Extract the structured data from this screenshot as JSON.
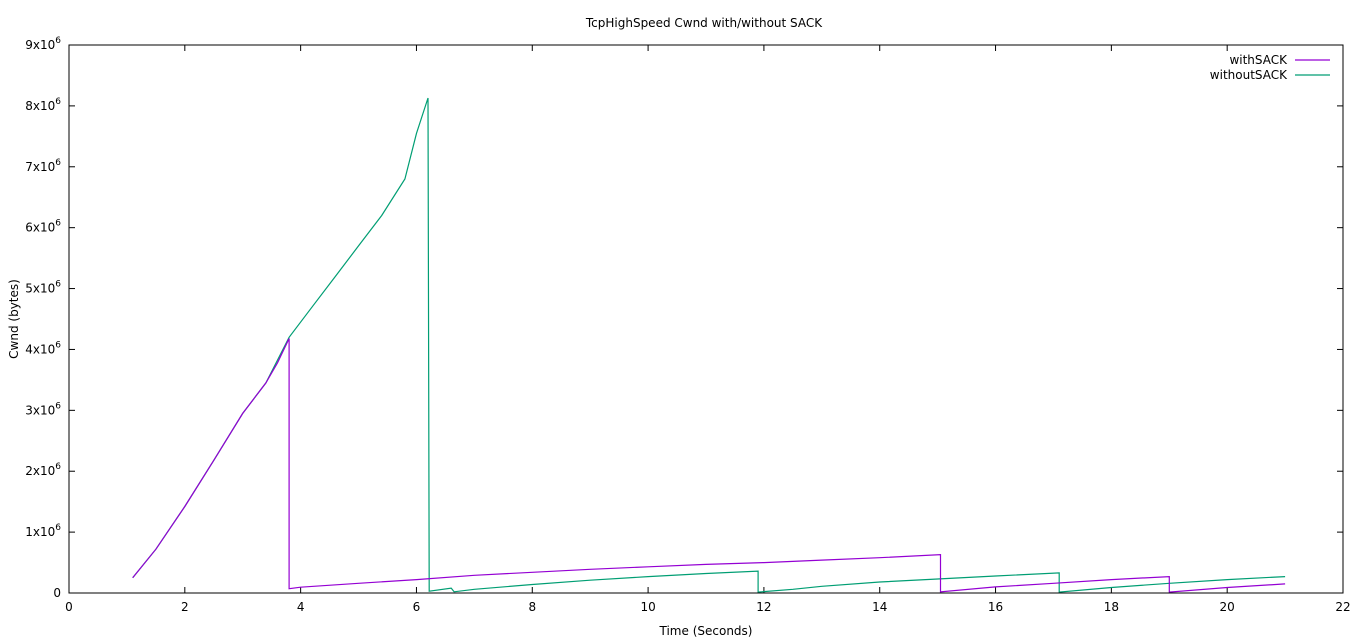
{
  "chart_data": {
    "type": "line",
    "title": "TcpHighSpeed Cwnd with/without SACK",
    "xlabel": "Time (Seconds)",
    "ylabel": "Cwnd (bytes)",
    "xlim": [
      0,
      22
    ],
    "ylim": [
      0,
      9000000
    ],
    "x_ticks": [
      {
        "value": 0,
        "label": "0"
      },
      {
        "value": 2,
        "label": "2"
      },
      {
        "value": 4,
        "label": "4"
      },
      {
        "value": 6,
        "label": "6"
      },
      {
        "value": 8,
        "label": "8"
      },
      {
        "value": 10,
        "label": "10"
      },
      {
        "value": 12,
        "label": "12"
      },
      {
        "value": 14,
        "label": "14"
      },
      {
        "value": 16,
        "label": "16"
      },
      {
        "value": 18,
        "label": "18"
      },
      {
        "value": 20,
        "label": "20"
      },
      {
        "value": 22,
        "label": "22"
      }
    ],
    "y_ticks": [
      {
        "value": 0,
        "mant": "0",
        "exp": ""
      },
      {
        "value": 1000000,
        "mant": "1x10",
        "exp": "6"
      },
      {
        "value": 2000000,
        "mant": "2x10",
        "exp": "6"
      },
      {
        "value": 3000000,
        "mant": "3x10",
        "exp": "6"
      },
      {
        "value": 4000000,
        "mant": "4x10",
        "exp": "6"
      },
      {
        "value": 5000000,
        "mant": "5x10",
        "exp": "6"
      },
      {
        "value": 6000000,
        "mant": "6x10",
        "exp": "6"
      },
      {
        "value": 7000000,
        "mant": "7x10",
        "exp": "6"
      },
      {
        "value": 8000000,
        "mant": "8x10",
        "exp": "6"
      },
      {
        "value": 9000000,
        "mant": "9x10",
        "exp": "6"
      }
    ],
    "grid": false,
    "legend_position": "top-right",
    "series": [
      {
        "name": "withSACK",
        "color": "#9400d3",
        "points": [
          [
            1.1,
            250000
          ],
          [
            1.5,
            720000
          ],
          [
            2.0,
            1420000
          ],
          [
            2.5,
            2180000
          ],
          [
            3.0,
            2950000
          ],
          [
            3.4,
            3450000
          ],
          [
            3.6,
            3780000
          ],
          [
            3.8,
            4180000
          ],
          [
            3.8,
            70000
          ],
          [
            4.0,
            95000
          ],
          [
            5.0,
            160000
          ],
          [
            6.0,
            220000
          ],
          [
            7.0,
            290000
          ],
          [
            8.0,
            340000
          ],
          [
            9.0,
            390000
          ],
          [
            10.0,
            430000
          ],
          [
            11.0,
            470000
          ],
          [
            12.0,
            500000
          ],
          [
            13.0,
            540000
          ],
          [
            14.0,
            580000
          ],
          [
            15.05,
            630000
          ],
          [
            15.05,
            20000
          ],
          [
            16.0,
            100000
          ],
          [
            17.0,
            160000
          ],
          [
            18.0,
            220000
          ],
          [
            19.0,
            270000
          ],
          [
            19.0,
            15000
          ],
          [
            20.0,
            90000
          ],
          [
            21.0,
            150000
          ]
        ]
      },
      {
        "name": "withoutSACK",
        "color": "#009e73",
        "points": [
          [
            1.1,
            250000
          ],
          [
            1.5,
            720000
          ],
          [
            2.0,
            1420000
          ],
          [
            2.5,
            2180000
          ],
          [
            3.0,
            2950000
          ],
          [
            3.4,
            3450000
          ],
          [
            3.8,
            4200000
          ],
          [
            4.2,
            4700000
          ],
          [
            4.6,
            5200000
          ],
          [
            5.0,
            5700000
          ],
          [
            5.4,
            6200000
          ],
          [
            5.8,
            6800000
          ],
          [
            6.0,
            7550000
          ],
          [
            6.2,
            8130000
          ],
          [
            6.22,
            30000
          ],
          [
            6.6,
            80000
          ],
          [
            6.65,
            20000
          ],
          [
            7.0,
            60000
          ],
          [
            8.0,
            140000
          ],
          [
            9.0,
            210000
          ],
          [
            10.0,
            270000
          ],
          [
            11.0,
            320000
          ],
          [
            11.9,
            360000
          ],
          [
            11.9,
            15000
          ],
          [
            12.5,
            60000
          ],
          [
            13.0,
            110000
          ],
          [
            14.0,
            180000
          ],
          [
            15.0,
            230000
          ],
          [
            16.0,
            280000
          ],
          [
            17.1,
            330000
          ],
          [
            17.1,
            15000
          ],
          [
            18.0,
            90000
          ],
          [
            19.0,
            160000
          ],
          [
            20.0,
            220000
          ],
          [
            21.0,
            270000
          ]
        ]
      }
    ]
  }
}
